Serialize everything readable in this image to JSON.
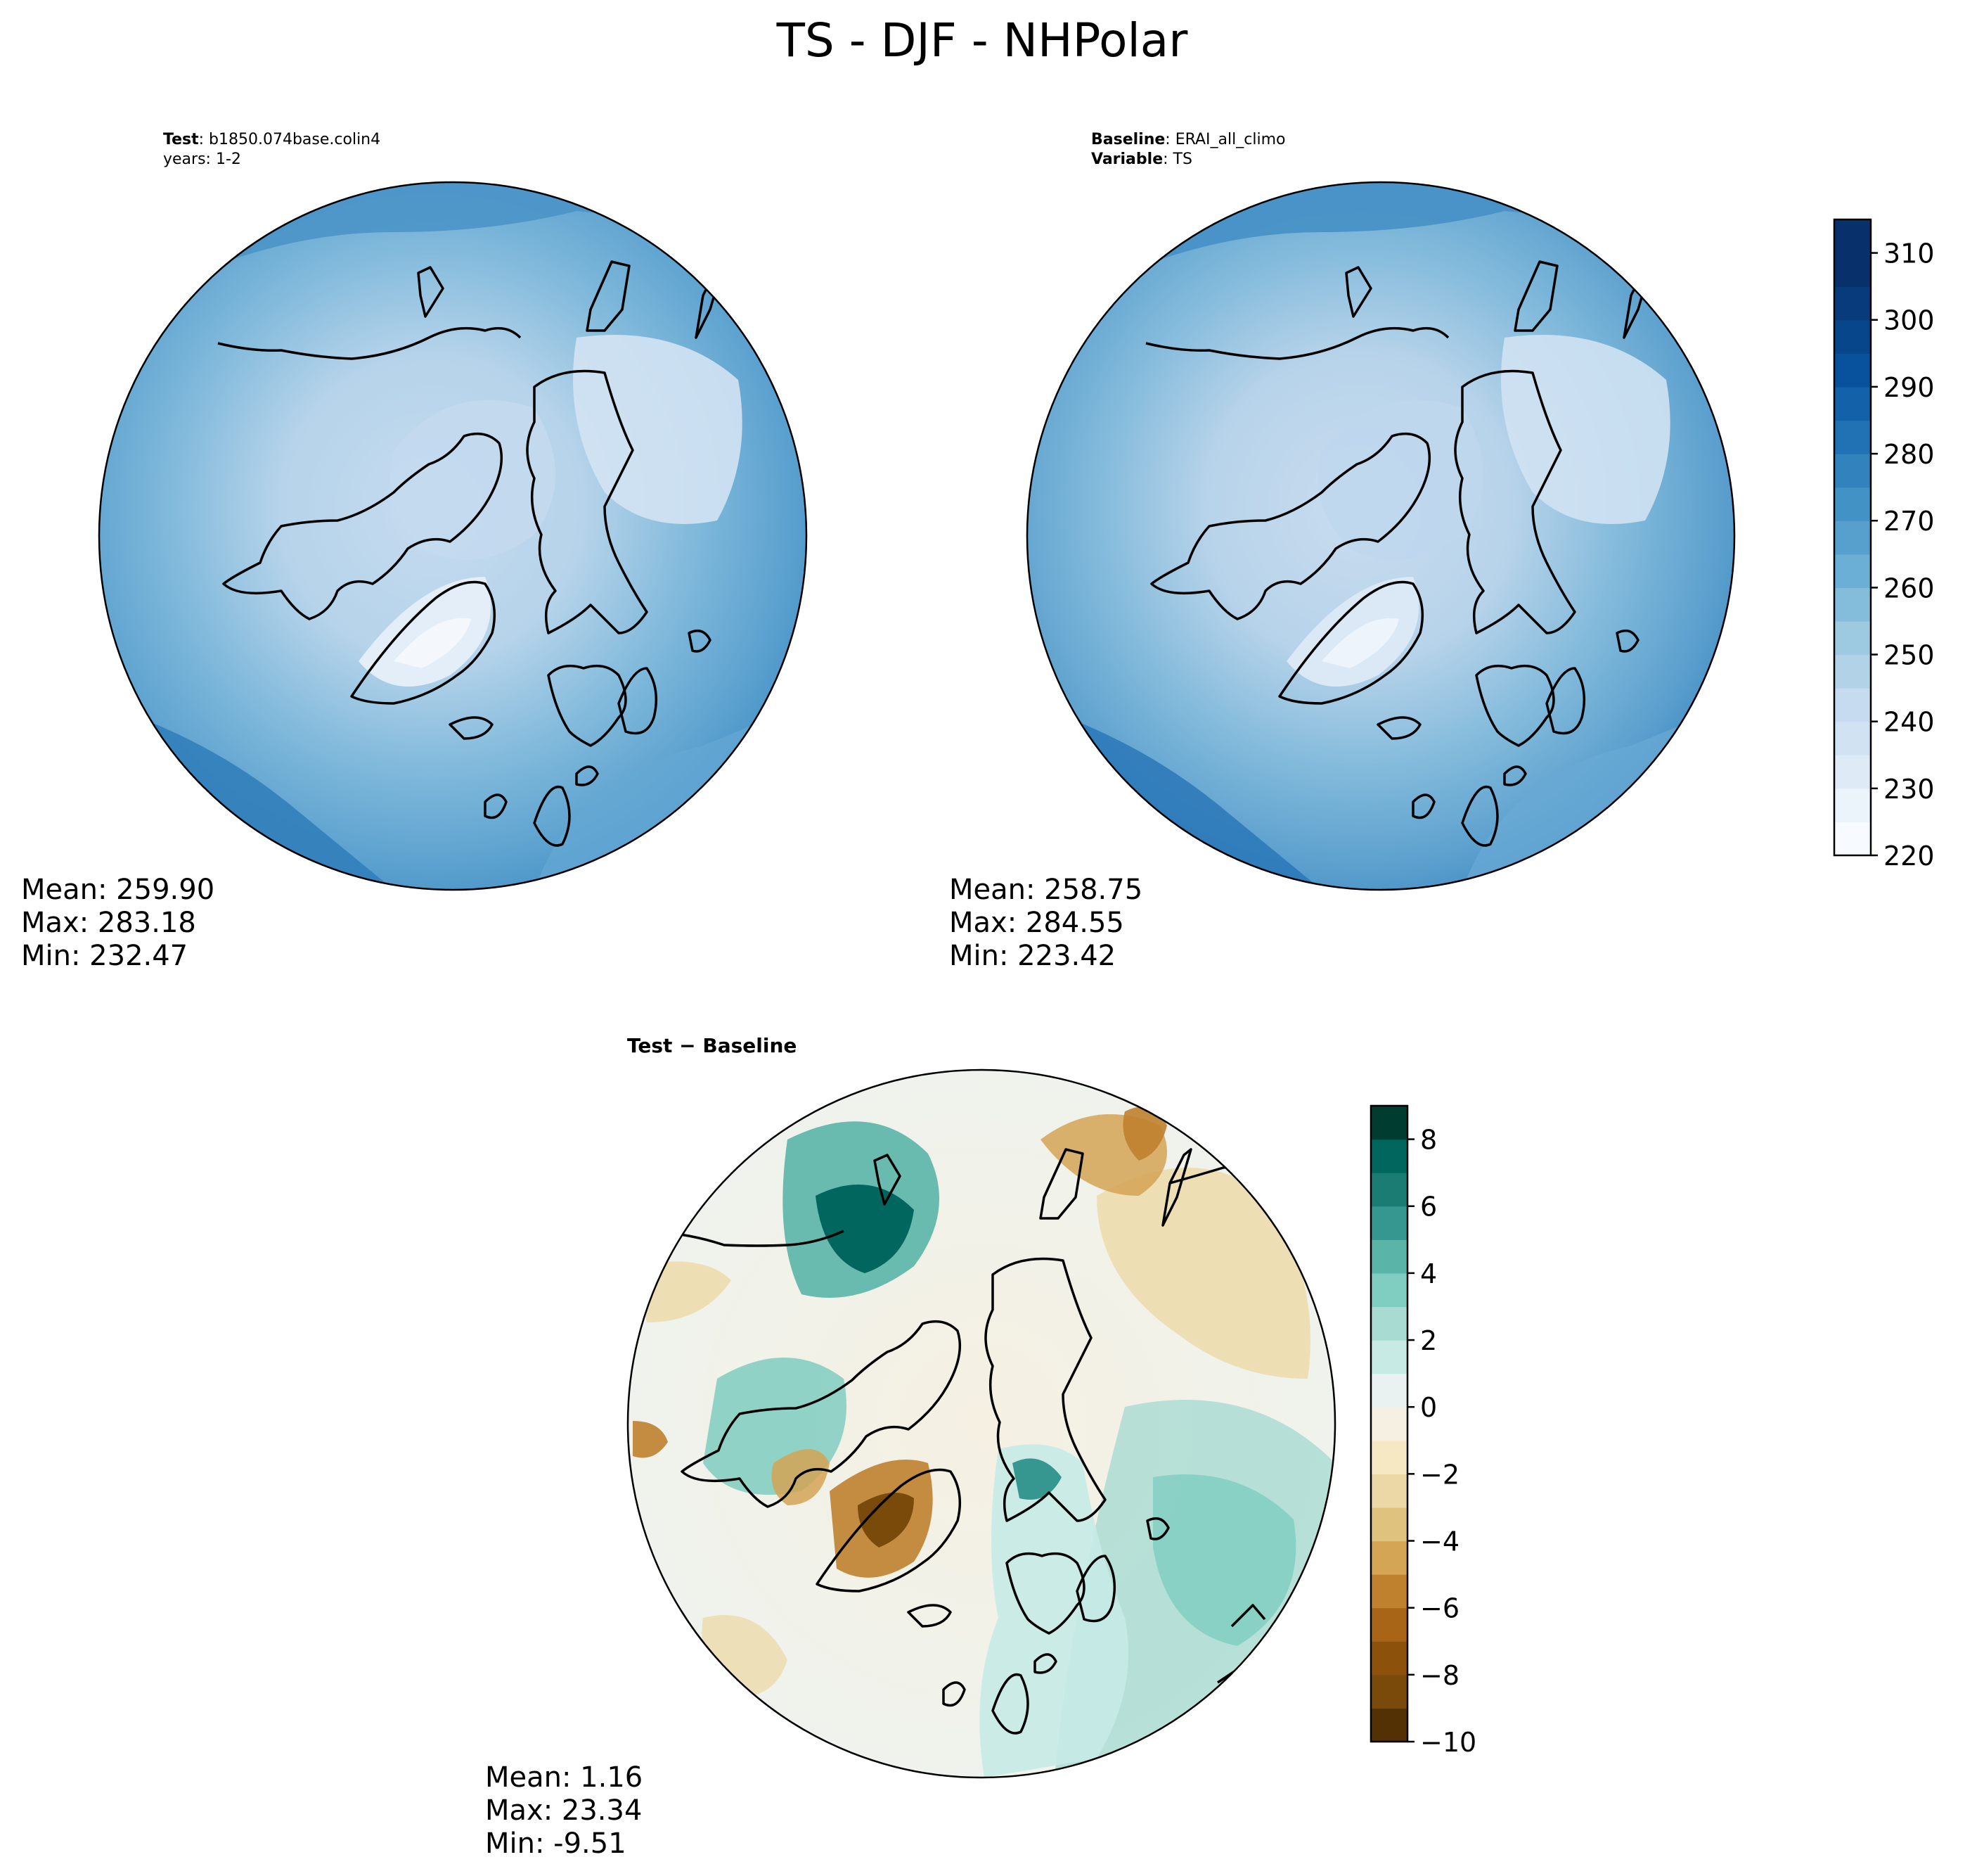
{
  "figure": {
    "title": "TS - DJF - NHPolar"
  },
  "panels": {
    "test": {
      "header_label": "Test",
      "header_value": "b1850.074base.colin4",
      "header_line2": "years: 1-2",
      "stats": {
        "mean": "Mean: 259.90",
        "max": "Max: 283.18",
        "min": "Min: 232.47"
      }
    },
    "baseline": {
      "header_label": "Baseline",
      "header_value": "ERAI_all_climo",
      "header_label2": "Variable",
      "header_value2": "TS",
      "stats": {
        "mean": "Mean: 258.75",
        "max": "Max: 284.55",
        "min": "Min: 223.42"
      }
    },
    "diff": {
      "header": "Test − Baseline",
      "stats": {
        "mean": "Mean:  1.16",
        "max": "Max: 23.34",
        "min": "Min: -9.51"
      }
    }
  },
  "chart_data": [
    {
      "type": "heatmap",
      "projection": "north-polar-stereographic",
      "variable": "TS",
      "colormap": "Blues",
      "colorbar": {
        "levels": [
          220,
          225,
          230,
          235,
          240,
          245,
          250,
          255,
          260,
          265,
          270,
          275,
          280,
          285,
          290,
          295,
          300,
          305,
          310,
          315
        ],
        "tick_values": [
          220,
          230,
          240,
          250,
          260,
          270,
          280,
          290,
          300,
          310
        ],
        "tick_labels": [
          "220",
          "230",
          "240",
          "250",
          "260",
          "270",
          "280",
          "290",
          "300",
          "310"
        ],
        "colors": [
          "#f7fbff",
          "#ebf3fb",
          "#deebf7",
          "#d1e3f3",
          "#c6dbef",
          "#b2d2e8",
          "#9ecae1",
          "#84bcdb",
          "#6baed6",
          "#57a0ce",
          "#4292c6",
          "#3182bd",
          "#2171b5",
          "#1361a9",
          "#08519c",
          "#08468b",
          "#083b7b",
          "#08306b"
        ]
      },
      "panels": [
        "test",
        "baseline"
      ]
    },
    {
      "type": "heatmap",
      "projection": "north-polar-stereographic",
      "variable": "TS difference",
      "colormap": "BrBG",
      "colorbar": {
        "levels": [
          -10,
          -9,
          -8,
          -7,
          -6,
          -5,
          -4,
          -3,
          -2,
          -1,
          0,
          1,
          2,
          3,
          4,
          5,
          6,
          7,
          8,
          9
        ],
        "tick_values": [
          -10,
          -8,
          -6,
          -4,
          -2,
          0,
          2,
          4,
          6,
          8
        ],
        "tick_labels": [
          "−10",
          "−8",
          "−6",
          "−4",
          "−2",
          "0",
          "2",
          "4",
          "6",
          "8"
        ],
        "colors": [
          "#543005",
          "#7a4a0b",
          "#8c510a",
          "#a86417",
          "#bf812d",
          "#d4a555",
          "#dfc27d",
          "#ecd8a6",
          "#f6e8c3",
          "#f5f0e2",
          "#e9f2f0",
          "#c7eae5",
          "#a8dbd2",
          "#80cdc1",
          "#5ab4a8",
          "#35978f",
          "#1b7c73",
          "#01665e",
          "#003c30"
        ]
      },
      "panels": [
        "diff"
      ]
    }
  ]
}
